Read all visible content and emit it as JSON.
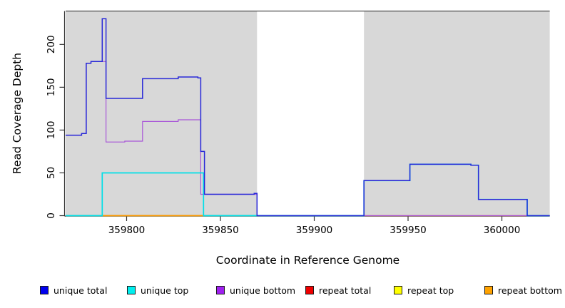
{
  "axes": {
    "x_label": "Coordinate in Reference Genome",
    "y_label": "Read Coverage Depth",
    "x_ticks": [
      {
        "v": 359800,
        "label": "359800"
      },
      {
        "v": 359850,
        "label": "359850"
      },
      {
        "v": 359900,
        "label": "359900"
      },
      {
        "v": 359950,
        "label": "359950"
      },
      {
        "v": 360000,
        "label": "360000"
      }
    ],
    "y_ticks": [
      {
        "v": 0,
        "label": "0"
      },
      {
        "v": 50,
        "label": "50"
      },
      {
        "v": 100,
        "label": "100"
      },
      {
        "v": 150,
        "label": "150"
      },
      {
        "v": 200,
        "label": "200"
      }
    ]
  },
  "colors": {
    "shaded_region": "#d8d8d8",
    "plot_background": "#ffffff",
    "axis": "#333333",
    "top_rule": "#4d4d4d"
  },
  "chart_data": {
    "type": "line",
    "interpolation": "step-after",
    "title": "",
    "xlabel": "Coordinate in Reference Genome",
    "ylabel": "Read Coverage Depth",
    "xlim": [
      359767.5,
      360025.5
    ],
    "ylim": [
      0,
      239
    ],
    "grid": false,
    "legend_position": "bottom",
    "top_rule_y": 239,
    "shaded_regions": [
      {
        "from": 359767.5,
        "to": 359869.5
      },
      {
        "from": 359926.5,
        "to": 360025.5
      }
    ],
    "unshaded_gap": {
      "from": 359869.5,
      "to": 359926.5
    },
    "series": [
      {
        "name": "unique total",
        "color": "#0000ee",
        "line_color": "#2828d8",
        "z": 7,
        "in_legend": true,
        "points": [
          [
            359767.5,
            94
          ],
          [
            359776,
            96
          ],
          [
            359778.5,
            178
          ],
          [
            359781,
            180
          ],
          [
            359787,
            230
          ],
          [
            359789,
            137
          ],
          [
            359808.5,
            160
          ],
          [
            359827.5,
            162
          ],
          [
            359838,
            161
          ],
          [
            359839.5,
            75
          ],
          [
            359841.5,
            25
          ],
          [
            359868,
            26
          ],
          [
            359869.5,
            0
          ],
          [
            359926.5,
            41
          ],
          [
            359951,
            60
          ],
          [
            359983.5,
            59
          ],
          [
            359987.5,
            19
          ],
          [
            360013.5,
            0
          ],
          [
            360025.5,
            0
          ]
        ]
      },
      {
        "name": "unique top",
        "color": "#00eeee",
        "line_color": "#00dfe8",
        "z": 6,
        "in_legend": true,
        "points": [
          [
            359767.5,
            0
          ],
          [
            359787,
            50
          ],
          [
            359841,
            0
          ],
          [
            359926.5,
            41
          ],
          [
            359951,
            60
          ],
          [
            359983.5,
            59
          ],
          [
            359987.5,
            19
          ],
          [
            360013.5,
            0
          ],
          [
            360025.5,
            0
          ]
        ]
      },
      {
        "name": "unique bottom",
        "color": "#a020f0",
        "line_color": "#a855d8",
        "z": 5,
        "in_legend": true,
        "points": [
          [
            359767.5,
            94
          ],
          [
            359776,
            96
          ],
          [
            359778.5,
            178
          ],
          [
            359781,
            180
          ],
          [
            359789,
            86
          ],
          [
            359799,
            87
          ],
          [
            359808.5,
            110
          ],
          [
            359827.5,
            112
          ],
          [
            359839.5,
            25
          ],
          [
            359869.5,
            0
          ],
          [
            360025.5,
            0
          ]
        ]
      },
      {
        "name": "repeat total",
        "color": "#ee0000",
        "line_color": "#de2e48",
        "z": 2,
        "in_legend": true,
        "points": [
          [
            359767.5,
            0
          ],
          [
            360025.5,
            0
          ]
        ]
      },
      {
        "name": "repeat top",
        "color": "#ffff00",
        "line_color": "#f2e900",
        "z": 1,
        "in_legend": true,
        "points": [
          [
            359767.5,
            0
          ],
          [
            360025.5,
            0
          ]
        ]
      },
      {
        "name": "repeat bottom",
        "color": "#ffa200",
        "line_color": "#ff9800",
        "z": 4,
        "in_legend": true,
        "points": [
          [
            359787,
            0
          ],
          [
            359841,
            0
          ]
        ]
      },
      {
        "name": "unlabeled baseline",
        "color": "#58b860",
        "line_color": "#58b860",
        "z": 3,
        "in_legend": false,
        "points": [
          [
            359767.5,
            0
          ],
          [
            359869.5,
            0
          ]
        ]
      }
    ]
  }
}
